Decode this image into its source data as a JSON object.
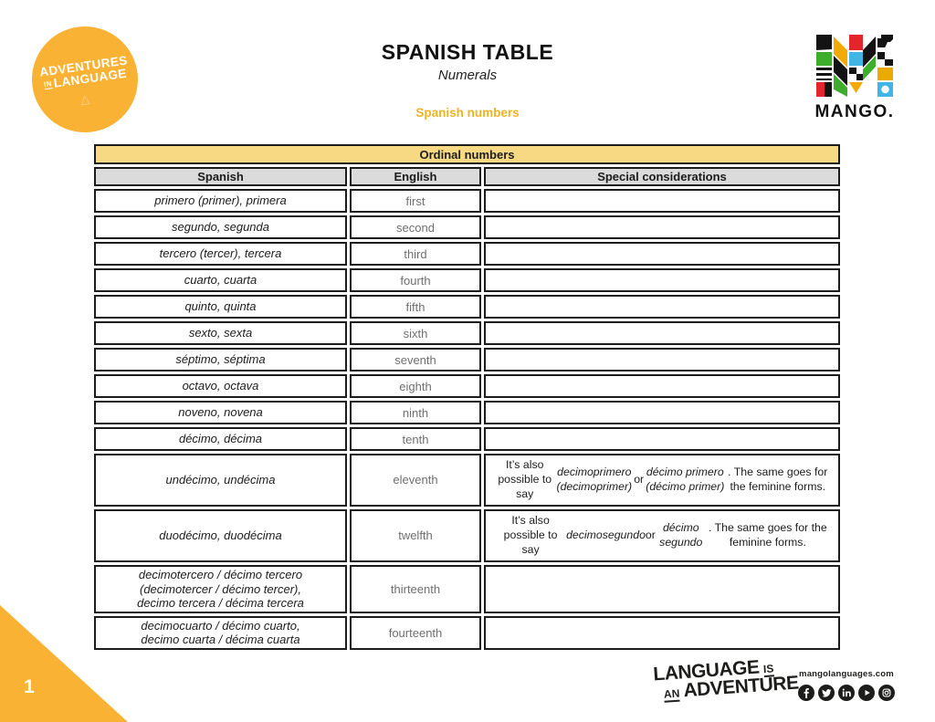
{
  "colors": {
    "mango_yellow": "#F9B233",
    "pale_yellow": "#F8D983",
    "header_gray": "#DBDBDB",
    "muted_text": "#6F6F6F",
    "gold_text": "#F0B325"
  },
  "badge": {
    "line1": "ADVENTURES",
    "in": "IN",
    "line2": "LANGUAGE",
    "icon": "adventure-mark"
  },
  "header": {
    "title": "SPANISH TABLE",
    "subtitle": "Numerals",
    "section": "Spanish numbers"
  },
  "brand": {
    "wordmark": "MANGO."
  },
  "table": {
    "title": "Ordinal numbers",
    "columns": [
      "Spanish",
      "English",
      "Special considerations"
    ],
    "rows": [
      {
        "spanish": "primero (primer), primera",
        "english": "first",
        "notes": ""
      },
      {
        "spanish": "segundo, segunda",
        "english": "second",
        "notes": ""
      },
      {
        "spanish": "tercero (tercer), tercera",
        "english": "third",
        "notes": ""
      },
      {
        "spanish": "cuarto, cuarta",
        "english": "fourth",
        "notes": ""
      },
      {
        "spanish": "quinto, quinta",
        "english": "fifth",
        "notes": ""
      },
      {
        "spanish": "sexto, sexta",
        "english": "sixth",
        "notes": ""
      },
      {
        "spanish": "séptimo, séptima",
        "english": "seventh",
        "notes": ""
      },
      {
        "spanish": "octavo, octava",
        "english": "eighth",
        "notes": ""
      },
      {
        "spanish": "noveno, novena",
        "english": "ninth",
        "notes": ""
      },
      {
        "spanish": "décimo, décima",
        "english": "tenth",
        "notes": ""
      },
      {
        "spanish": "undécimo, undécima",
        "english": "eleventh",
        "notes": "It’s also possible to say *decimoprimero (decimoprimer)* or *décimo primero (décimo primer)*. The same goes for the feminine forms."
      },
      {
        "spanish": "duodécimo, duodécima",
        "english": "twelfth",
        "notes": "It’s also possible to say *decimosegundo* or *décimo segundo*. The same goes for the feminine forms."
      },
      {
        "spanish": "decimotercero / décimo tercero\n(decimotercer / décimo tercer),\ndecimo tercera / décima tercera",
        "english": "thirteenth",
        "notes": ""
      },
      {
        "spanish": "decimocuarto / décimo cuarto,\ndecimo cuarta / décima cuarta",
        "english": "fourteenth",
        "notes": ""
      }
    ]
  },
  "footer": {
    "page_number": "1",
    "tagline": {
      "word1": "LANGUAGE",
      "is": "IS",
      "an": "AN",
      "word2": "ADVENTURE"
    },
    "website": "mangolanguages.com",
    "social": [
      "facebook",
      "twitter",
      "linkedin",
      "youtube",
      "instagram"
    ]
  }
}
